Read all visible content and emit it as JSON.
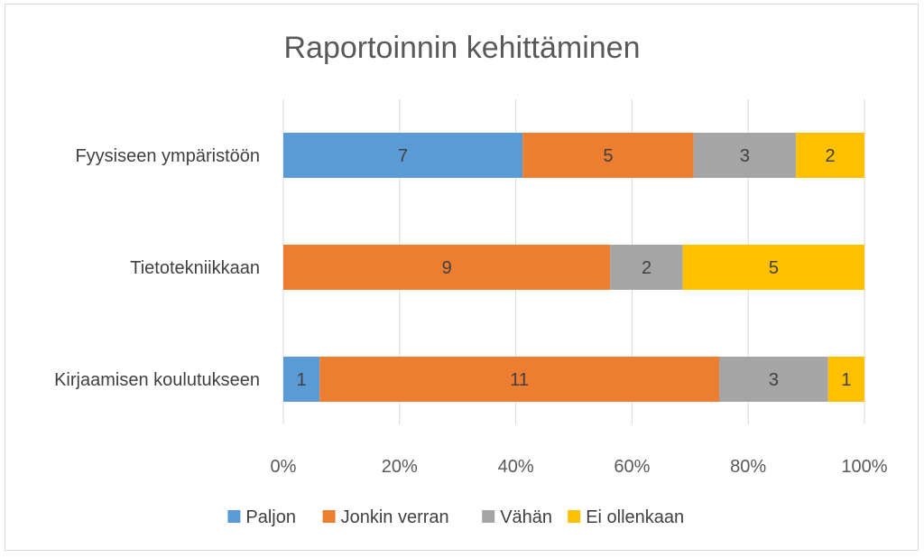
{
  "chart_data": {
    "type": "bar",
    "orientation": "horizontal",
    "stacked": "percent",
    "title": "Raportoinnin kehittäminen",
    "categories": [
      "Fyysiseen ympäristöön",
      "Tietotekniikkaan",
      "Kirjaamisen koulutukseen"
    ],
    "series": [
      {
        "name": "Paljon",
        "color": "#5b9bd5",
        "values": [
          7,
          0,
          1
        ]
      },
      {
        "name": "Jonkin verran",
        "color": "#ed7d31",
        "values": [
          5,
          9,
          11
        ]
      },
      {
        "name": "Vähän",
        "color": "#a5a5a5",
        "values": [
          3,
          2,
          3
        ]
      },
      {
        "name": "Ei ollenkaan",
        "color": "#ffc000",
        "values": [
          2,
          5,
          1
        ]
      }
    ],
    "xticks": [
      "0%",
      "20%",
      "40%",
      "60%",
      "80%",
      "100%"
    ],
    "xlim": [
      0,
      100
    ],
    "grid": true,
    "legend": "bottom"
  }
}
